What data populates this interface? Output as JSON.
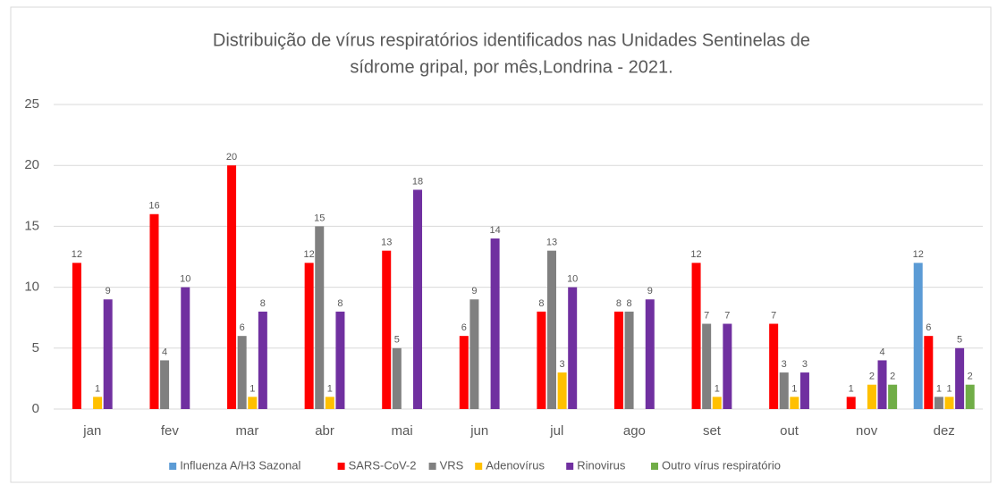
{
  "chart_data": {
    "type": "bar",
    "title": [
      "Distribuição de vírus respiratórios identificados nas Unidades Sentinelas de",
      "sídrome gripal, por mês,Londrina - 2021."
    ],
    "categories": [
      "jan",
      "fev",
      "mar",
      "abr",
      "mai",
      "jun",
      "jul",
      "ago",
      "set",
      "out",
      "nov",
      "dez"
    ],
    "series": [
      {
        "name": "Influenza A/H3 Sazonal",
        "color": "#5b9bd5",
        "values": [
          0,
          0,
          0,
          0,
          0,
          0,
          0,
          0,
          0,
          0,
          0,
          12
        ]
      },
      {
        "name": "SARS-CoV-2",
        "color": "#ff0000",
        "values": [
          12,
          16,
          20,
          12,
          13,
          6,
          8,
          8,
          12,
          7,
          1,
          6
        ]
      },
      {
        "name": "VRS",
        "color": "#808080",
        "values": [
          0,
          4,
          6,
          15,
          5,
          9,
          13,
          8,
          7,
          3,
          0,
          1
        ]
      },
      {
        "name": "Adenovírus",
        "color": "#ffc000",
        "values": [
          1,
          0,
          1,
          1,
          0,
          0,
          3,
          0,
          1,
          1,
          2,
          1
        ]
      },
      {
        "name": "Rinovirus",
        "color": "#7030a0",
        "values": [
          9,
          10,
          8,
          8,
          18,
          14,
          10,
          9,
          7,
          3,
          4,
          5
        ]
      },
      {
        "name": "Outro vírus respiratório",
        "color": "#70ad47",
        "values": [
          0,
          0,
          0,
          0,
          0,
          0,
          0,
          0,
          0,
          0,
          2,
          2
        ]
      }
    ],
    "ylim": [
      0,
      25
    ],
    "yticks": [
      0,
      5,
      10,
      15,
      20,
      25
    ],
    "grid": true,
    "legend": "bottom"
  }
}
